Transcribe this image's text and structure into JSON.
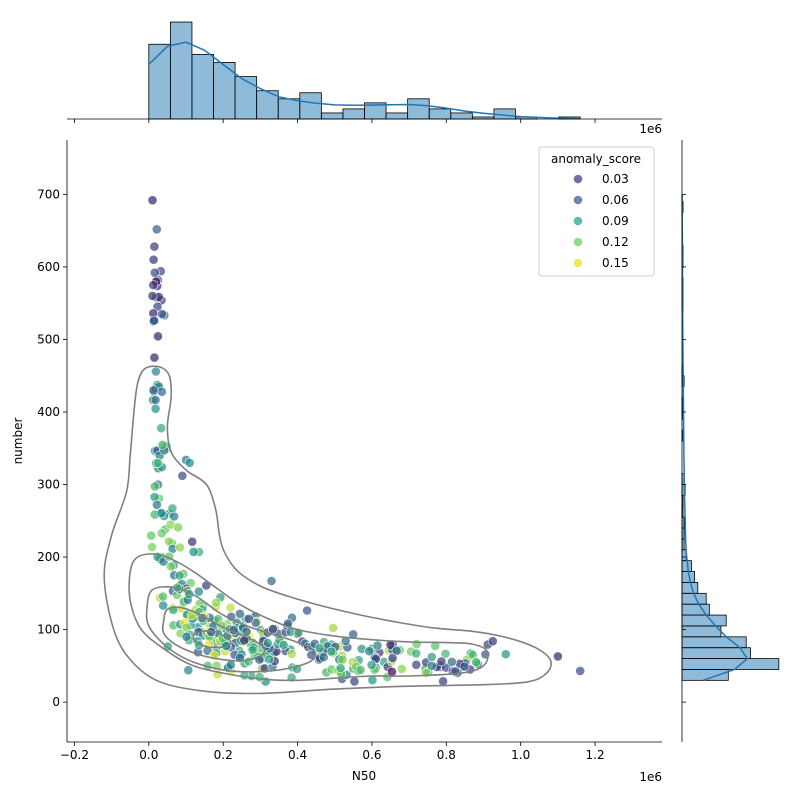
{
  "chart_data": {
    "type": "scatter",
    "subtype": "jointplot",
    "xlabel": "N50",
    "ylabel": "number",
    "x_offset_text": "1e6",
    "top_offset_text": "1e6",
    "xlim": [
      -0.22,
      1.38
    ],
    "ylim": [
      -55,
      775
    ],
    "x_ticks": [
      -0.2,
      0.0,
      0.2,
      0.4,
      0.6,
      0.8,
      1.0,
      1.2
    ],
    "x_tick_labels": [
      "−0.2",
      "0.0",
      "0.2",
      "0.4",
      "0.6",
      "0.8",
      "1.0",
      "1.2"
    ],
    "y_ticks": [
      0,
      100,
      200,
      300,
      400,
      500,
      600,
      700
    ],
    "y_tick_labels": [
      "0",
      "100",
      "200",
      "300",
      "400",
      "500",
      "600",
      "700"
    ],
    "legend": {
      "title": "anomaly_score",
      "placement": "upper right",
      "entries": [
        {
          "label": "0.03",
          "color": "#46327e"
        },
        {
          "label": "0.06",
          "color": "#365c8d"
        },
        {
          "label": "0.09",
          "color": "#1fa187"
        },
        {
          "label": "0.12",
          "color": "#6ccd5a"
        },
        {
          "label": "0.15",
          "color": "#e3e418"
        }
      ]
    },
    "colormap": "viridis",
    "hue_range": [
      0.0,
      0.17
    ],
    "marginal_color": "#1f77b4",
    "contour_color": "#808080",
    "top_hist": {
      "bin_edges": [
        0.0,
        0.058,
        0.116,
        0.174,
        0.232,
        0.29,
        0.348,
        0.406,
        0.464,
        0.522,
        0.58,
        0.638,
        0.696,
        0.754,
        0.812,
        0.87,
        0.928,
        0.986,
        1.044,
        1.102,
        1.16
      ],
      "counts": [
        37,
        48,
        32,
        28,
        21,
        14,
        10,
        13,
        3,
        5,
        8,
        3,
        10,
        5,
        3,
        1,
        5,
        1,
        0,
        1
      ],
      "kde": [
        [
          0.0,
          27
        ],
        [
          0.05,
          36
        ],
        [
          0.1,
          38
        ],
        [
          0.15,
          34
        ],
        [
          0.2,
          27
        ],
        [
          0.25,
          20
        ],
        [
          0.3,
          15
        ],
        [
          0.35,
          11
        ],
        [
          0.4,
          9
        ],
        [
          0.45,
          7.8
        ],
        [
          0.5,
          7
        ],
        [
          0.55,
          6.8
        ],
        [
          0.6,
          6.9
        ],
        [
          0.65,
          7.1
        ],
        [
          0.7,
          7.2
        ],
        [
          0.75,
          6.6
        ],
        [
          0.8,
          5.4
        ],
        [
          0.85,
          3.9
        ],
        [
          0.9,
          2.8
        ],
        [
          0.95,
          2.0
        ],
        [
          1.0,
          1.2
        ],
        [
          1.1,
          0.4
        ],
        [
          1.16,
          0.1
        ]
      ]
    },
    "right_hist": {
      "bin_edges": [
        30,
        45,
        60,
        75,
        90,
        105,
        120,
        135,
        150,
        165,
        180,
        195,
        210,
        225,
        240,
        255,
        270,
        285,
        300,
        315,
        330,
        345,
        360,
        375,
        390,
        405,
        420,
        435,
        450,
        465,
        480,
        495,
        510,
        525,
        540,
        555,
        570,
        585,
        600,
        615,
        630,
        645,
        660,
        675,
        690
      ],
      "counts": [
        44,
        92,
        65,
        61,
        37,
        42,
        26,
        23,
        15,
        12,
        9,
        4,
        2,
        2,
        2,
        1,
        1,
        3,
        2,
        0,
        0,
        0,
        1,
        0,
        1,
        1,
        0,
        2,
        1,
        0,
        0,
        0,
        0,
        0,
        1,
        1,
        1,
        0,
        1,
        1,
        0,
        0,
        0,
        1
      ],
      "kde": [
        [
          30,
          20
        ],
        [
          45,
          50
        ],
        [
          60,
          62
        ],
        [
          75,
          55
        ],
        [
          90,
          42
        ],
        [
          105,
          32
        ],
        [
          120,
          23
        ],
        [
          135,
          16
        ],
        [
          150,
          11
        ],
        [
          165,
          8
        ],
        [
          180,
          6
        ],
        [
          200,
          4.5
        ],
        [
          220,
          3.5
        ],
        [
          250,
          3
        ],
        [
          280,
          2.5
        ],
        [
          310,
          2.2
        ],
        [
          340,
          1.8
        ],
        [
          370,
          1.6
        ],
        [
          400,
          1.4
        ],
        [
          450,
          1.1
        ],
        [
          500,
          0.8
        ],
        [
          550,
          0.6
        ],
        [
          600,
          0.5
        ],
        [
          650,
          0.3
        ],
        [
          700,
          0.1
        ]
      ]
    },
    "contours": [
      [
        [
          -0.01,
          460
        ],
        [
          0.03,
          462
        ],
        [
          0.055,
          450
        ],
        [
          0.06,
          420
        ],
        [
          0.05,
          380
        ],
        [
          0.06,
          345
        ],
        [
          0.1,
          320
        ],
        [
          0.155,
          300
        ],
        [
          0.18,
          265
        ],
        [
          0.19,
          230
        ],
        [
          0.205,
          205
        ],
        [
          0.24,
          180
        ],
        [
          0.3,
          160
        ],
        [
          0.38,
          145
        ],
        [
          0.47,
          132
        ],
        [
          0.57,
          120
        ],
        [
          0.67,
          110
        ],
        [
          0.77,
          102
        ],
        [
          0.88,
          97
        ],
        [
          0.97,
          88
        ],
        [
          1.04,
          75
        ],
        [
          1.08,
          58
        ],
        [
          1.07,
          40
        ],
        [
          1.02,
          28
        ],
        [
          0.9,
          24
        ],
        [
          0.7,
          22
        ],
        [
          0.5,
          18
        ],
        [
          0.3,
          12
        ],
        [
          0.15,
          15
        ],
        [
          0.02,
          30
        ],
        [
          -0.06,
          65
        ],
        [
          -0.1,
          110
        ],
        [
          -0.12,
          175
        ],
        [
          -0.1,
          230
        ],
        [
          -0.06,
          290
        ],
        [
          -0.05,
          340
        ],
        [
          -0.04,
          400
        ],
        [
          -0.03,
          440
        ],
        [
          -0.01,
          460
        ]
      ],
      [
        [
          -0.03,
          200
        ],
        [
          0.02,
          204
        ],
        [
          0.07,
          195
        ],
        [
          0.12,
          180
        ],
        [
          0.18,
          158
        ],
        [
          0.25,
          133
        ],
        [
          0.33,
          113
        ],
        [
          0.4,
          100
        ],
        [
          0.5,
          91
        ],
        [
          0.6,
          86
        ],
        [
          0.7,
          83
        ],
        [
          0.8,
          82
        ],
        [
          0.87,
          80
        ],
        [
          0.91,
          70
        ],
        [
          0.9,
          50
        ],
        [
          0.84,
          40
        ],
        [
          0.7,
          36
        ],
        [
          0.6,
          36
        ],
        [
          0.5,
          33
        ],
        [
          0.4,
          30
        ],
        [
          0.3,
          32
        ],
        [
          0.2,
          40
        ],
        [
          0.12,
          50
        ],
        [
          0.05,
          70
        ],
        [
          -0.02,
          100
        ],
        [
          -0.05,
          140
        ],
        [
          -0.05,
          180
        ],
        [
          -0.03,
          200
        ]
      ],
      [
        [
          0.01,
          155
        ],
        [
          0.07,
          158
        ],
        [
          0.13,
          145
        ],
        [
          0.2,
          120
        ],
        [
          0.28,
          102
        ],
        [
          0.38,
          86
        ],
        [
          0.44,
          72
        ],
        [
          0.44,
          58
        ],
        [
          0.38,
          47
        ],
        [
          0.3,
          42
        ],
        [
          0.22,
          43
        ],
        [
          0.15,
          50
        ],
        [
          0.09,
          62
        ],
        [
          0.04,
          80
        ],
        [
          0.0,
          105
        ],
        [
          -0.005,
          130
        ],
        [
          0.01,
          155
        ]
      ],
      [
        [
          0.05,
          128
        ],
        [
          0.09,
          130
        ],
        [
          0.14,
          120
        ],
        [
          0.2,
          103
        ],
        [
          0.27,
          88
        ],
        [
          0.31,
          75
        ],
        [
          0.3,
          64
        ],
        [
          0.25,
          57
        ],
        [
          0.18,
          60
        ],
        [
          0.12,
          68
        ],
        [
          0.07,
          80
        ],
        [
          0.04,
          95
        ],
        [
          0.04,
          112
        ],
        [
          0.05,
          128
        ]
      ],
      [
        [
          0.13,
          96
        ],
        [
          0.17,
          98
        ],
        [
          0.2,
          92
        ],
        [
          0.22,
          83
        ],
        [
          0.2,
          76
        ],
        [
          0.16,
          76
        ],
        [
          0.13,
          82
        ],
        [
          0.12,
          89
        ],
        [
          0.13,
          96
        ]
      ]
    ],
    "clusters": [
      {
        "cx": 0.025,
        "cy": 570,
        "sx": 0.006,
        "sy": 50,
        "n": 14,
        "hmin": 0.0,
        "hmax": 0.06
      },
      {
        "cx": 0.02,
        "cy": 420,
        "sx": 0.005,
        "sy": 40,
        "n": 10,
        "hmin": 0.04,
        "hmax": 0.1
      },
      {
        "cx": 0.035,
        "cy": 310,
        "sx": 0.012,
        "sy": 40,
        "n": 20,
        "hmin": 0.06,
        "hmax": 0.13
      },
      {
        "cx": 0.05,
        "cy": 220,
        "sx": 0.02,
        "sy": 30,
        "n": 22,
        "hmin": 0.06,
        "hmax": 0.15
      },
      {
        "cx": 0.1,
        "cy": 140,
        "sx": 0.04,
        "sy": 28,
        "n": 45,
        "hmin": 0.02,
        "hmax": 0.16
      },
      {
        "cx": 0.2,
        "cy": 95,
        "sx": 0.06,
        "sy": 22,
        "n": 90,
        "hmin": 0.04,
        "hmax": 0.17
      },
      {
        "cx": 0.33,
        "cy": 75,
        "sx": 0.07,
        "sy": 22,
        "n": 70,
        "hmin": 0.02,
        "hmax": 0.15
      },
      {
        "cx": 0.55,
        "cy": 58,
        "sx": 0.08,
        "sy": 16,
        "n": 60,
        "hmin": 0.02,
        "hmax": 0.15
      },
      {
        "cx": 0.78,
        "cy": 53,
        "sx": 0.09,
        "sy": 12,
        "n": 40,
        "hmin": 0.0,
        "hmax": 0.14
      }
    ],
    "fixed_points": [
      [
        0.01,
        692,
        0.02
      ],
      [
        0.015,
        628,
        0.03
      ],
      [
        0.013,
        610,
        0.03
      ],
      [
        0.016,
        592,
        0.04
      ],
      [
        0.012,
        575,
        0.03
      ],
      [
        0.01,
        560,
        0.03
      ],
      [
        0.012,
        536,
        0.02
      ],
      [
        0.014,
        526,
        0.05
      ],
      [
        0.015,
        475,
        0.02
      ],
      [
        0.035,
        428,
        0.06
      ],
      [
        0.013,
        430,
        0.06
      ],
      [
        0.1,
        334,
        0.07
      ],
      [
        0.11,
        330,
        0.08
      ],
      [
        0.09,
        312,
        0.04
      ],
      [
        0.33,
        167,
        0.06
      ],
      [
        0.925,
        84,
        0.03
      ],
      [
        0.96,
        66,
        0.09
      ],
      [
        1.1,
        63,
        0.02
      ],
      [
        1.16,
        43,
        0.04
      ],
      [
        0.88,
        55,
        0.12
      ],
      [
        0.72,
        80,
        0.13
      ]
    ]
  }
}
